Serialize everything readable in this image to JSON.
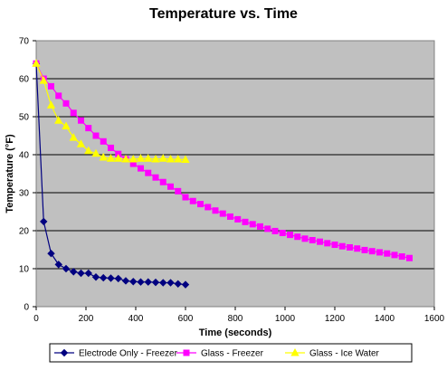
{
  "chart_data": {
    "type": "line",
    "title": "Temperature vs. Time",
    "xlabel": "Time (seconds)",
    "ylabel": "Temperature (°F)",
    "xlim": [
      0,
      1600
    ],
    "ylim": [
      0,
      70
    ],
    "xticks": [
      0,
      200,
      400,
      600,
      800,
      1000,
      1200,
      1400,
      1600
    ],
    "yticks": [
      0,
      10,
      20,
      30,
      40,
      50,
      60,
      70
    ],
    "grid": true,
    "plot_background": "#c0c0c0",
    "legend_position": "bottom",
    "series": [
      {
        "name": "Electrode Only - Freezer",
        "color": "#000080",
        "marker": "diamond",
        "x": [
          0,
          30,
          60,
          90,
          120,
          150,
          180,
          210,
          240,
          270,
          300,
          330,
          360,
          390,
          420,
          450,
          480,
          510,
          540,
          570,
          600
        ],
        "y": [
          64,
          22.4,
          14,
          11.1,
          10,
          9.2,
          8.8,
          8.8,
          7.8,
          7.6,
          7.5,
          7.4,
          6.8,
          6.6,
          6.5,
          6.5,
          6.4,
          6.3,
          6.3,
          6,
          5.8
        ]
      },
      {
        "name": "Glass - Freezer",
        "color": "#ff00ff",
        "marker": "square",
        "x": [
          0,
          30,
          60,
          90,
          120,
          150,
          180,
          210,
          240,
          270,
          300,
          330,
          360,
          390,
          420,
          450,
          480,
          510,
          540,
          570,
          600,
          630,
          660,
          690,
          720,
          750,
          780,
          810,
          840,
          870,
          900,
          930,
          960,
          990,
          1020,
          1050,
          1080,
          1110,
          1140,
          1170,
          1200,
          1230,
          1260,
          1290,
          1320,
          1350,
          1380,
          1410,
          1440,
          1470,
          1500
        ],
        "y": [
          64,
          60,
          58,
          55.5,
          53.5,
          51,
          49,
          47,
          45,
          43.5,
          41.8,
          40.2,
          38.8,
          37.6,
          36.4,
          35.2,
          34,
          32.8,
          31.6,
          30.4,
          28.8,
          27.8,
          27,
          26.2,
          25.3,
          24.5,
          23.7,
          23,
          22.3,
          21.7,
          21.1,
          20.5,
          19.9,
          19.4,
          18.9,
          18.4,
          17.9,
          17.5,
          17.1,
          16.7,
          16.3,
          15.9,
          15.6,
          15.3,
          14.9,
          14.6,
          14.3,
          14,
          13.6,
          13.2,
          12.8
        ]
      },
      {
        "name": "Glass - Ice Water",
        "color": "#ffff00",
        "marker": "triangle",
        "x": [
          0,
          30,
          60,
          90,
          120,
          150,
          180,
          210,
          240,
          270,
          300,
          330,
          360,
          390,
          420,
          450,
          480,
          510,
          540,
          570,
          600
        ],
        "y": [
          64,
          59.5,
          53,
          49,
          47.5,
          44.5,
          42.8,
          41,
          40.3,
          39.3,
          39,
          39,
          38.8,
          38.8,
          39,
          39,
          38.8,
          39,
          38.8,
          38.8,
          38.7
        ]
      }
    ]
  }
}
